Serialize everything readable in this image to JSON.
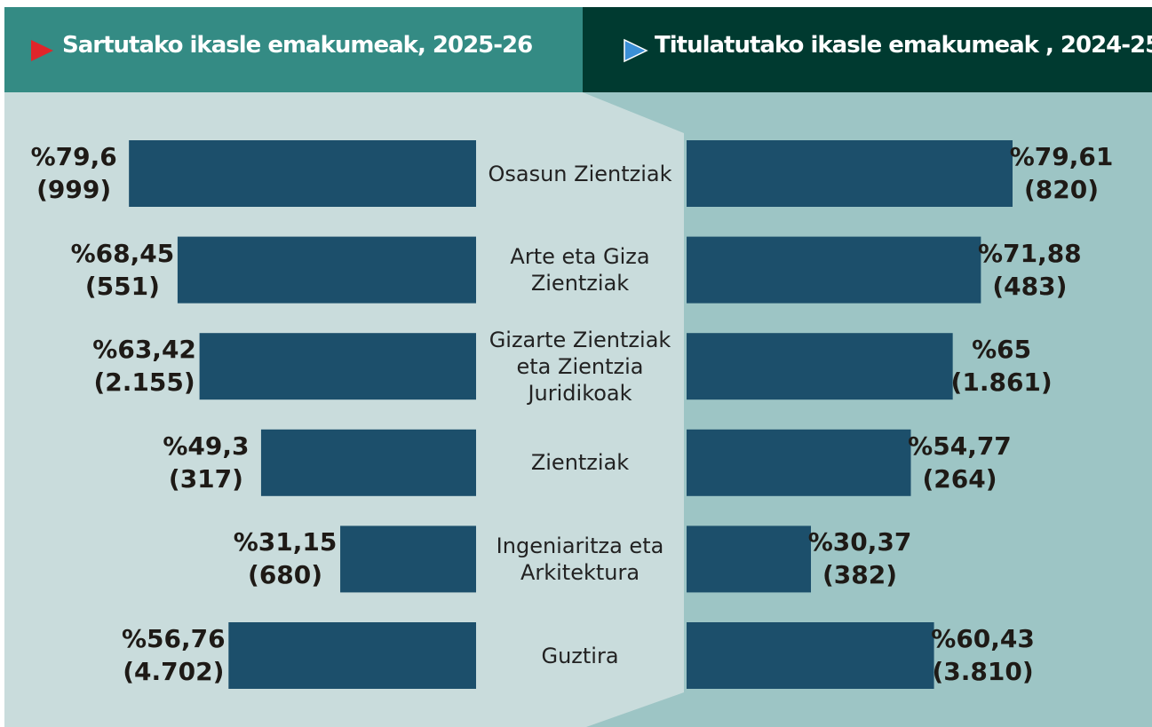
{
  "chart_data": {
    "type": "butterfly-bar",
    "categories": [
      "Osasun Zientziak",
      "Arte eta Giza Zientziak",
      "Gizarte Zientziak eta Zientzia Juridikoak",
      "Zientziak",
      "Ingeniaritza eta Arkitektura",
      "Guztira"
    ],
    "xlim": [
      0,
      100
    ],
    "series": [
      {
        "name": "Sartutako ikasle emakumeak, 2025-26",
        "color": "#1c4f6b",
        "values": [
          79.6,
          68.45,
          63.42,
          49.3,
          31.15,
          56.76
        ],
        "value_labels": [
          "%79,6",
          "%68,45",
          "%63,42",
          "%49,3",
          "%31,15",
          "%56,76"
        ],
        "counts": [
          999,
          551,
          2155,
          317,
          680,
          4702
        ],
        "count_labels": [
          "(999)",
          "(551)",
          "(2.155)",
          "(317)",
          "(680)",
          "(4.702)"
        ]
      },
      {
        "name": "Titulatutako ikasle emakumeak , 2024-25",
        "color": "#1c4f6b",
        "values": [
          79.61,
          71.88,
          65,
          54.77,
          30.37,
          60.43
        ],
        "value_labels": [
          "%79,61",
          "%71,88",
          "%65",
          "%54,77",
          "%30,37",
          "%60,43"
        ],
        "counts": [
          820,
          483,
          1861,
          264,
          382,
          3810
        ],
        "count_labels": [
          "(820)",
          "(483)",
          "(1.861)",
          "(264)",
          "(382)",
          "(3.810)"
        ]
      }
    ]
  }
}
